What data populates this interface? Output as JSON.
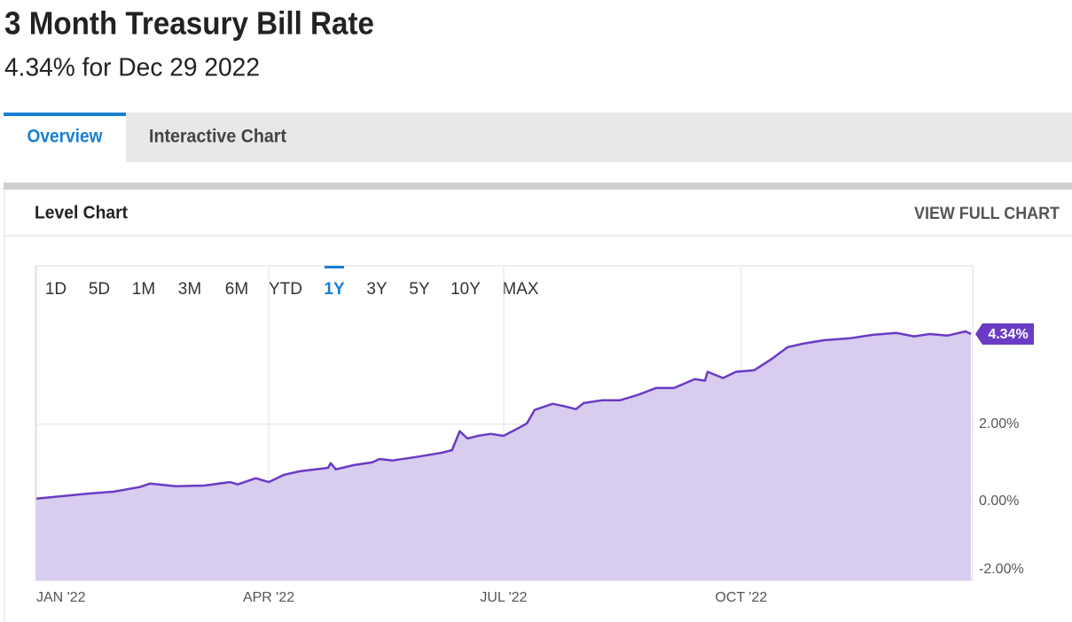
{
  "header": {
    "title": "3 Month Treasury Bill Rate",
    "subtitle": "4.34% for Dec 29 2022"
  },
  "tabs": [
    "Overview",
    "Interactive Chart"
  ],
  "panel": {
    "title": "Level Chart",
    "link": "VIEW FULL CHART"
  },
  "ranges": [
    "1D",
    "5D",
    "1M",
    "3M",
    "6M",
    "YTD",
    "1Y",
    "3Y",
    "5Y",
    "10Y",
    "MAX"
  ],
  "active_range": "1Y",
  "chart_data": {
    "type": "area",
    "x": [
      0,
      20,
      30,
      40,
      44,
      54,
      65,
      75,
      78,
      85,
      90,
      96,
      102,
      113,
      114,
      116,
      123,
      130,
      133,
      138,
      147,
      157,
      161,
      164,
      167,
      171,
      176,
      181,
      187,
      190,
      193,
      200,
      205,
      209,
      212,
      219,
      226,
      233,
      240,
      247,
      255,
      259,
      260,
      266,
      271,
      278,
      285,
      291,
      297,
      305,
      315,
      324,
      333,
      340,
      346,
      353,
      360,
      362
    ],
    "series": [
      {
        "name": "3 Month Treasury Bill Rate",
        "color": "#6a3bc4",
        "fill": "#d8ccef",
        "values": [
          0.07,
          0.2,
          0.25,
          0.37,
          0.46,
          0.39,
          0.41,
          0.5,
          0.44,
          0.6,
          0.5,
          0.69,
          0.78,
          0.87,
          0.99,
          0.83,
          0.94,
          1.01,
          1.1,
          1.06,
          1.15,
          1.26,
          1.33,
          1.82,
          1.63,
          1.7,
          1.75,
          1.7,
          1.91,
          2.02,
          2.37,
          2.53,
          2.46,
          2.39,
          2.55,
          2.62,
          2.62,
          2.76,
          2.94,
          2.94,
          3.17,
          3.13,
          3.36,
          3.2,
          3.36,
          3.4,
          3.7,
          4.0,
          4.09,
          4.18,
          4.23,
          4.32,
          4.37,
          4.28,
          4.34,
          4.3,
          4.41,
          4.34
        ]
      }
    ],
    "xlim": [
      0,
      362
    ],
    "xticks": [
      {
        "value": 0,
        "label": "JAN '22"
      },
      {
        "value": 90,
        "label": "APR '22"
      },
      {
        "value": 181,
        "label": "JUL '22"
      },
      {
        "value": 273,
        "label": "OCT '22"
      }
    ],
    "ylim": [
      -2.05,
      6.11
    ],
    "yticks": [
      {
        "value": -2,
        "label": "-2.00%"
      },
      {
        "value": 0,
        "label": "0.00%"
      },
      {
        "value": 2,
        "label": "2.00%"
      }
    ],
    "grid": true,
    "annotations": [
      {
        "x": 362,
        "y": 4.34,
        "label": "4.34%"
      }
    ]
  }
}
